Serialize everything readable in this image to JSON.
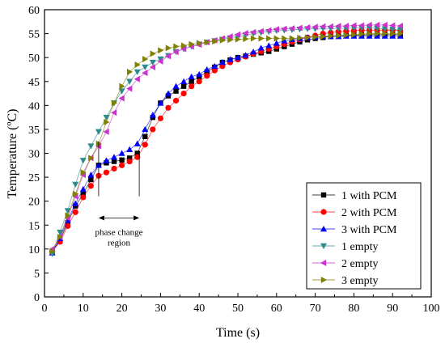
{
  "chart_data": {
    "type": "line",
    "title": "",
    "xlabel": "Time (s)",
    "ylabel": "Temperature (ºC)",
    "xlim": [
      0,
      100
    ],
    "ylim": [
      0,
      60
    ],
    "x_ticks": [
      "0",
      "10",
      "20",
      "30",
      "40",
      "50",
      "60",
      "70",
      "80",
      "90",
      "100"
    ],
    "y_ticks": [
      "0",
      "5",
      "10",
      "15",
      "20",
      "25",
      "30",
      "35",
      "40",
      "45",
      "50",
      "55",
      "60"
    ],
    "legend_position": "bottom-right",
    "annotation": {
      "text_line1": "phase change",
      "text_line2": "region",
      "x_start": 14,
      "x_end": 24.5
    },
    "series": [
      {
        "name": "1 with PCM",
        "color": "#000000",
        "marker": "square",
        "x": [
          2,
          4,
          6,
          8,
          10,
          12,
          14,
          16,
          18,
          20,
          22,
          24,
          26,
          28,
          30,
          32,
          34,
          36,
          38,
          40,
          42,
          44,
          46,
          48,
          50,
          52,
          54,
          56,
          58,
          60,
          62,
          64,
          66,
          68,
          70,
          72,
          74,
          76,
          78,
          80,
          82,
          84,
          86,
          88,
          90,
          92
        ],
        "y": [
          9.5,
          11.8,
          15.5,
          19,
          21.5,
          24.5,
          27.5,
          28,
          28.3,
          28.6,
          29,
          30,
          33.5,
          37.5,
          40.5,
          42,
          43,
          44,
          45,
          46,
          47,
          48,
          49,
          49.5,
          50,
          50.3,
          50.7,
          51,
          51.3,
          51.8,
          52.3,
          52.8,
          53.3,
          53.7,
          54,
          54.2,
          54.4,
          54.5,
          54.6,
          54.7,
          54.7,
          54.8,
          54.8,
          54.8,
          54.8,
          54.8
        ]
      },
      {
        "name": "2 with PCM",
        "color": "#ff0000",
        "marker": "circle",
        "x": [
          2,
          4,
          6,
          8,
          10,
          12,
          14,
          16,
          18,
          20,
          22,
          24,
          26,
          28,
          30,
          32,
          34,
          36,
          38,
          40,
          42,
          44,
          46,
          48,
          50,
          52,
          54,
          56,
          58,
          60,
          62,
          64,
          66,
          68,
          70,
          72,
          74,
          76,
          78,
          80,
          82,
          84,
          86,
          88,
          90,
          92
        ],
        "y": [
          9.5,
          11.5,
          14.8,
          17.7,
          20.8,
          23.2,
          25.3,
          26,
          26.8,
          27.5,
          28.3,
          29.2,
          31.8,
          35,
          37.3,
          39.5,
          41,
          42.5,
          44,
          45,
          46.2,
          47.3,
          48.2,
          49,
          49.6,
          50.2,
          50.8,
          51.3,
          51.8,
          52.3,
          52.8,
          53.3,
          53.8,
          54.2,
          54.6,
          55,
          55.2,
          55.4,
          55.5,
          55.6,
          55.7,
          55.7,
          55.7,
          55.7,
          55.7,
          55.6
        ]
      },
      {
        "name": "3 with PCM",
        "color": "#0000ff",
        "marker": "triangle-up",
        "x": [
          2,
          4,
          6,
          8,
          10,
          12,
          14,
          16,
          18,
          20,
          22,
          24,
          26,
          28,
          30,
          32,
          34,
          36,
          38,
          40,
          42,
          44,
          46,
          48,
          50,
          52,
          54,
          56,
          58,
          60,
          62,
          64,
          66,
          68,
          70,
          72,
          74,
          76,
          78,
          80,
          82,
          84,
          86,
          88,
          90,
          92
        ],
        "y": [
          9.2,
          12.2,
          16,
          19.5,
          22.5,
          25.5,
          27.5,
          28.5,
          29.2,
          30,
          30.8,
          32,
          35,
          38,
          40.5,
          42.5,
          44,
          45,
          46,
          46.5,
          47.5,
          48.2,
          49,
          49.6,
          50,
          50.5,
          51.2,
          52,
          52.5,
          53,
          53.5,
          53.8,
          54,
          54.2,
          54.3,
          54.4,
          54.4,
          54.4,
          54.5,
          54.5,
          54.5,
          54.5,
          54.5,
          54.5,
          54.5,
          54.5
        ]
      },
      {
        "name": "1 empty",
        "color": "#2e8b8b",
        "marker": "triangle-down",
        "x": [
          2,
          4,
          6,
          8,
          10,
          12,
          14,
          16,
          18,
          20,
          22,
          24,
          26,
          28,
          30,
          32,
          34,
          36,
          38,
          40,
          42,
          44,
          46,
          48,
          50,
          52,
          54,
          56,
          58,
          60,
          62,
          64,
          66,
          68,
          70,
          72,
          74,
          76,
          78,
          80,
          82,
          84,
          86,
          88,
          90,
          92
        ],
        "y": [
          9,
          13.5,
          18,
          23.5,
          28.5,
          31.5,
          34.5,
          37.5,
          40.5,
          43,
          45,
          47,
          48,
          49,
          49.7,
          50.4,
          51.2,
          51.8,
          52.3,
          52.8,
          53.2,
          53.5,
          53.8,
          54.1,
          54.4,
          54.7,
          55,
          55.2,
          55.4,
          55.6,
          55.7,
          55.8,
          55.9,
          56,
          56,
          56.1,
          56.1,
          56.1,
          56.1,
          56.2,
          56.2,
          56.2,
          56.1,
          56,
          55.9,
          55.8
        ]
      },
      {
        "name": "2 empty",
        "color": "#cc33cc",
        "marker": "triangle-left",
        "x": [
          2,
          4,
          6,
          8,
          10,
          12,
          14,
          16,
          18,
          20,
          22,
          24,
          26,
          28,
          30,
          32,
          34,
          36,
          38,
          40,
          42,
          44,
          46,
          48,
          50,
          52,
          54,
          56,
          58,
          60,
          62,
          64,
          66,
          68,
          70,
          72,
          74,
          76,
          78,
          80,
          82,
          84,
          86,
          88,
          90,
          92
        ],
        "y": [
          10,
          12.5,
          16.5,
          21,
          25.5,
          29,
          31.5,
          34.5,
          38.5,
          41.5,
          43.5,
          45.5,
          46.8,
          48,
          49.2,
          50.3,
          51.2,
          51.8,
          52.3,
          52.7,
          53.2,
          53.6,
          54,
          54.4,
          54.8,
          55.1,
          55.3,
          55.5,
          55.7,
          55.9,
          56,
          56.1,
          56.2,
          56.3,
          56.4,
          56.5,
          56.5,
          56.6,
          56.6,
          56.7,
          56.7,
          56.8,
          56.8,
          56.8,
          56.7,
          56.6
        ]
      },
      {
        "name": "3 empty",
        "color": "#808000",
        "marker": "triangle-right",
        "x": [
          2,
          4,
          6,
          8,
          10,
          12,
          14,
          16,
          18,
          20,
          22,
          24,
          26,
          28,
          30,
          32,
          34,
          36,
          38,
          40,
          42,
          44,
          46,
          48,
          50,
          52,
          54,
          56,
          58,
          60,
          62,
          64,
          66,
          68,
          70,
          72,
          74,
          76,
          78,
          80,
          82,
          84,
          86,
          88,
          90,
          92
        ],
        "y": [
          9.5,
          12.5,
          17,
          21.5,
          26,
          29,
          32,
          36.5,
          40.5,
          44,
          47,
          48.5,
          49.7,
          50.8,
          51.5,
          52,
          52.3,
          52.5,
          52.8,
          53,
          53.2,
          53.4,
          53.6,
          53.7,
          53.8,
          53.9,
          54,
          54,
          54,
          54,
          54,
          54,
          54.1,
          54.2,
          54.3,
          54.4,
          54.5,
          54.6,
          54.7,
          54.8,
          54.9,
          55,
          55,
          55,
          55,
          55
        ]
      }
    ]
  }
}
